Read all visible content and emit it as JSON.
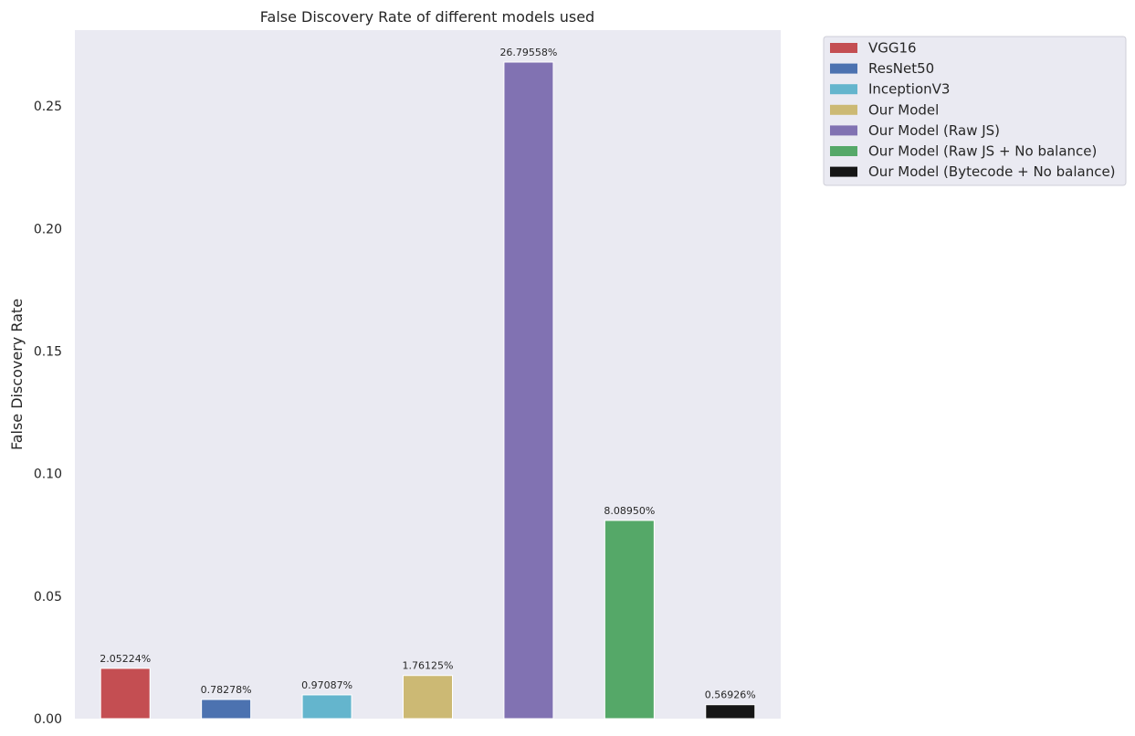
{
  "chart_data": {
    "type": "bar",
    "title": "False Discovery Rate of different models used",
    "xlabel": "",
    "ylabel": "False Discovery Rate",
    "ylim": [
      0,
      0.281
    ],
    "yticks": [
      0.0,
      0.05,
      0.1,
      0.15,
      0.2,
      0.25
    ],
    "ytick_labels": [
      "0.00",
      "0.05",
      "0.10",
      "0.15",
      "0.20",
      "0.25"
    ],
    "grid": false,
    "legend_position": "outside top-right",
    "categories": [
      "VGG16",
      "ResNet50",
      "InceptionV3",
      "Our Model",
      "Our Model (Raw JS)",
      "Our Model (Raw JS + No balance)",
      "Our Model (Bytecode + No balance)"
    ],
    "values": [
      0.0205224,
      0.0078278,
      0.0097087,
      0.0176125,
      0.2679558,
      0.080895,
      0.0056926
    ],
    "data_labels": [
      "2.05224%",
      "0.78278%",
      "0.97087%",
      "1.76125%",
      "26.79558%",
      "8.08950%",
      "0.56926%"
    ],
    "colors": [
      "#c44e52",
      "#4c72b0",
      "#64b5cd",
      "#ccb974",
      "#8172b2",
      "#55a868",
      "#161616"
    ],
    "legend": [
      "VGG16",
      "ResNet50",
      "InceptionV3",
      "Our Model",
      "Our Model (Raw JS)",
      "Our Model (Raw JS + No balance)",
      "Our Model (Bytecode + No balance)"
    ]
  },
  "style": {
    "plot_background": "#eaeaf2",
    "text_color": "#262626",
    "bar_edge_color": "#ffffff"
  }
}
